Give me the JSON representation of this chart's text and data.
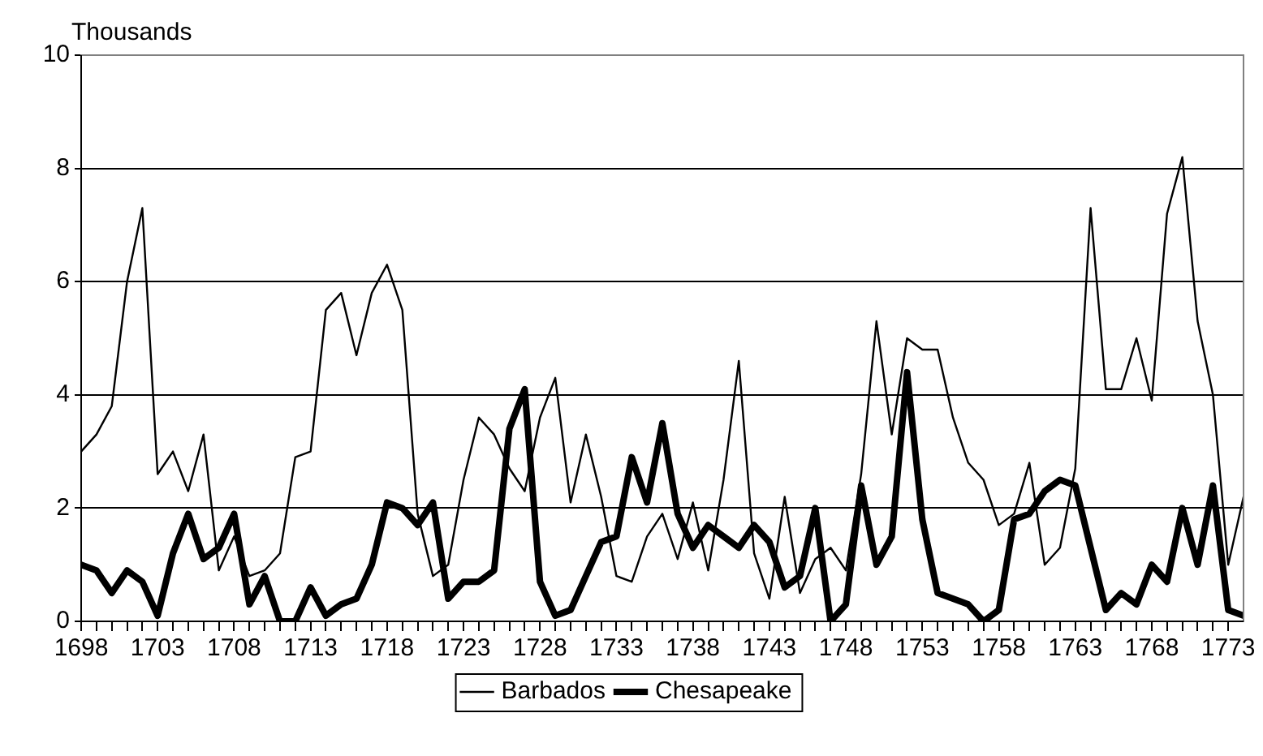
{
  "chart_data": {
    "type": "line",
    "ylabel": "Thousands",
    "x": [
      1698,
      1699,
      1700,
      1701,
      1702,
      1703,
      1704,
      1705,
      1706,
      1707,
      1708,
      1709,
      1710,
      1711,
      1712,
      1713,
      1714,
      1715,
      1716,
      1717,
      1718,
      1719,
      1720,
      1721,
      1722,
      1723,
      1724,
      1725,
      1726,
      1727,
      1728,
      1729,
      1730,
      1731,
      1732,
      1733,
      1734,
      1735,
      1736,
      1737,
      1738,
      1739,
      1740,
      1741,
      1742,
      1743,
      1744,
      1745,
      1746,
      1747,
      1748,
      1749,
      1750,
      1751,
      1752,
      1753,
      1754,
      1755,
      1756,
      1757,
      1758,
      1759,
      1760,
      1761,
      1762,
      1763,
      1764,
      1765,
      1766,
      1767,
      1768,
      1769,
      1770,
      1771,
      1772,
      1773,
      1774
    ],
    "series": [
      {
        "name": "Barbados",
        "color": "#000000",
        "values": [
          3.0,
          3.3,
          3.8,
          6.0,
          7.3,
          2.6,
          3.0,
          2.3,
          3.3,
          0.9,
          1.5,
          0.8,
          0.9,
          1.2,
          2.9,
          3.0,
          5.5,
          5.8,
          4.7,
          5.8,
          6.3,
          5.5,
          1.9,
          0.8,
          1.0,
          2.5,
          3.6,
          3.3,
          2.7,
          2.3,
          3.6,
          4.3,
          2.1,
          3.3,
          2.2,
          0.8,
          0.7,
          1.5,
          1.9,
          1.1,
          2.1,
          0.9,
          2.5,
          4.6,
          1.2,
          0.4,
          2.2,
          0.5,
          1.1,
          1.3,
          0.9,
          2.6,
          5.3,
          3.3,
          5.0,
          4.8,
          4.8,
          3.6,
          2.8,
          2.5,
          1.7,
          1.9,
          2.8,
          1.0,
          1.3,
          2.7,
          7.3,
          4.1,
          4.1,
          5.0,
          3.9,
          7.2,
          8.2,
          5.3,
          4.0,
          1.0,
          2.2
        ]
      },
      {
        "name": "Chesapeake",
        "color": "#000000",
        "values": [
          1.0,
          0.9,
          0.5,
          0.9,
          0.7,
          0.1,
          1.2,
          1.9,
          1.1,
          1.3,
          1.9,
          0.3,
          0.8,
          0,
          0,
          0.6,
          0.1,
          0.3,
          0.4,
          1.0,
          2.1,
          2.0,
          1.7,
          2.1,
          0.4,
          0.7,
          0.7,
          0.9,
          3.4,
          4.1,
          0.7,
          0.1,
          0.2,
          0.8,
          1.4,
          1.5,
          2.9,
          2.1,
          3.5,
          1.9,
          1.3,
          1.7,
          1.5,
          1.3,
          1.7,
          1.4,
          0.6,
          0.8,
          2.0,
          0,
          0.3,
          2.4,
          1.0,
          1.5,
          4.4,
          1.8,
          0.5,
          0.4,
          0.3,
          0,
          0.2,
          1.8,
          1.9,
          2.3,
          2.5,
          2.4,
          1.3,
          0.2,
          0.5,
          0.3,
          1.0,
          0.7,
          2.0,
          1.0,
          2.4,
          0.2,
          0.1
        ]
      }
    ],
    "xlim": [
      1698,
      1774
    ],
    "xticks": [
      1698,
      {
        "value": 1699,
        "label": null
      },
      {
        "value": 1700,
        "label": null
      },
      {
        "value": 1701,
        "label": null
      },
      {
        "value": 1702,
        "label": null
      },
      1703,
      {
        "value": 1704,
        "label": null
      },
      {
        "value": 1705,
        "label": null
      },
      {
        "value": 1706,
        "label": null
      },
      {
        "value": 1707,
        "label": null
      },
      1708,
      {
        "value": 1709,
        "label": null
      },
      {
        "value": 1710,
        "label": null
      },
      {
        "value": 1711,
        "label": null
      },
      {
        "value": 1712,
        "label": null
      },
      1713,
      {
        "value": 1714,
        "label": null
      },
      {
        "value": 1715,
        "label": null
      },
      {
        "value": 1716,
        "label": null
      },
      {
        "value": 1717,
        "label": null
      },
      1718,
      {
        "value": 1719,
        "label": null
      },
      {
        "value": 1720,
        "label": null
      },
      {
        "value": 1721,
        "label": null
      },
      {
        "value": 1722,
        "label": null
      },
      1723,
      {
        "value": 1724,
        "label": null
      },
      {
        "value": 1725,
        "label": null
      },
      {
        "value": 1726,
        "label": null
      },
      {
        "value": 1727,
        "label": null
      },
      1728,
      {
        "value": 1729,
        "label": null
      },
      {
        "value": 1730,
        "label": null
      },
      {
        "value": 1731,
        "label": null
      },
      {
        "value": 1732,
        "label": null
      },
      1733,
      {
        "value": 1734,
        "label": null
      },
      {
        "value": 1735,
        "label": null
      },
      {
        "value": 1736,
        "label": null
      },
      {
        "value": 1737,
        "label": null
      },
      1738,
      {
        "value": 1739,
        "label": null
      },
      {
        "value": 1740,
        "label": null
      },
      {
        "value": 1741,
        "label": null
      },
      {
        "value": 1742,
        "label": null
      },
      1743,
      {
        "value": 1744,
        "label": null
      },
      {
        "value": 1745,
        "label": null
      },
      {
        "value": 1746,
        "label": null
      },
      {
        "value": 1747,
        "label": null
      },
      1748,
      {
        "value": 1749,
        "label": null
      },
      {
        "value": 1750,
        "label": null
      },
      {
        "value": 1751,
        "label": null
      },
      {
        "value": 1752,
        "label": null
      },
      1753,
      {
        "value": 1754,
        "label": null
      },
      {
        "value": 1755,
        "label": null
      },
      {
        "value": 1756,
        "label": null
      },
      {
        "value": 1757,
        "label": null
      },
      1758,
      {
        "value": 1759,
        "label": null
      },
      {
        "value": 1760,
        "label": null
      },
      {
        "value": 1761,
        "label": null
      },
      {
        "value": 1762,
        "label": null
      },
      1763,
      {
        "value": 1764,
        "label": null
      },
      {
        "value": 1765,
        "label": null
      },
      {
        "value": 1766,
        "label": null
      },
      {
        "value": 1767,
        "label": null
      },
      1768,
      {
        "value": 1769,
        "label": null
      },
      {
        "value": 1770,
        "label": null
      },
      {
        "value": 1771,
        "label": null
      },
      {
        "value": 1772,
        "label": null
      },
      1773
    ],
    "ylim": [
      0,
      10
    ],
    "yticks": [
      0,
      2,
      4,
      6,
      8,
      10
    ],
    "grid": "y",
    "legend": "bottom",
    "marker": "none",
    "line_style": "solid"
  }
}
